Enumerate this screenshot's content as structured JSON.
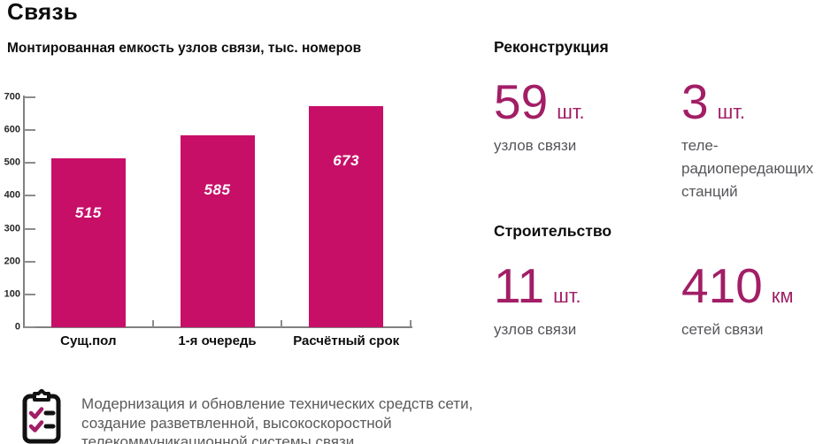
{
  "page": {
    "title": "Связь"
  },
  "chart_data": {
    "type": "bar",
    "title": "Монтированная емкость узлов связи, тыс. номеров",
    "categories": [
      "Сущ.пол",
      "1-я очередь",
      "Расчётный срок"
    ],
    "values": [
      515,
      585,
      673
    ],
    "xlabel": "",
    "ylabel": "",
    "ylim": [
      0,
      700
    ],
    "yticks": [
      0,
      100,
      200,
      300,
      400,
      500,
      600,
      700
    ],
    "grid": false,
    "legend": "none",
    "bar_color": "#C70F68",
    "value_label_color": "#FFFFFF",
    "axis_color": "#808080"
  },
  "stats": {
    "accent_color": "#A21E66",
    "sections": [
      {
        "heading": "Реконструкция",
        "items": [
          {
            "value": "59",
            "unit": "шт.",
            "label": "узлов связи"
          },
          {
            "value": "3",
            "unit": "шт.",
            "label": "теле-радиопередающих станций"
          }
        ]
      },
      {
        "heading": "Строительство",
        "items": [
          {
            "value": "11",
            "unit": "шт.",
            "label": "узлов связи"
          },
          {
            "value": "410",
            "unit": "км",
            "label": "сетей связи"
          }
        ]
      }
    ]
  },
  "note": {
    "icon": "checklist-clipboard-icon",
    "lines": [
      "Модернизация и обновление технических средств сети,",
      "создание разветвленной, высокоскоростной",
      "телекоммуникационной системы связи"
    ]
  }
}
